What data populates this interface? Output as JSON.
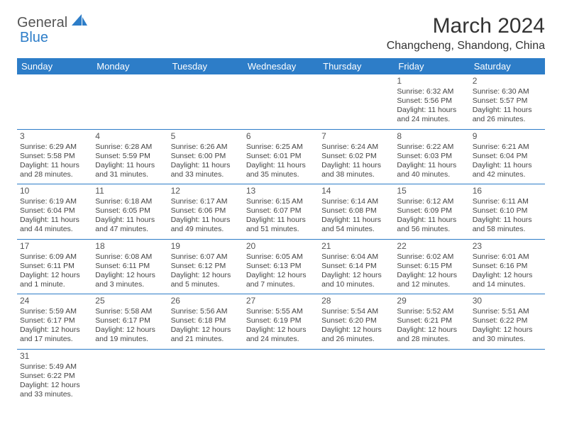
{
  "brand": {
    "part1": "General",
    "part2": "Blue"
  },
  "title": "March 2024",
  "location": "Changcheng, Shandong, China",
  "colors": {
    "accent": "#2d7dc8",
    "text": "#333333",
    "cell_text": "#444444",
    "bg": "#ffffff"
  },
  "day_headers": [
    "Sunday",
    "Monday",
    "Tuesday",
    "Wednesday",
    "Thursday",
    "Friday",
    "Saturday"
  ],
  "weeks": [
    [
      null,
      null,
      null,
      null,
      null,
      {
        "n": "1",
        "sr": "Sunrise: 6:32 AM",
        "ss": "Sunset: 5:56 PM",
        "d1": "Daylight: 11 hours",
        "d2": "and 24 minutes."
      },
      {
        "n": "2",
        "sr": "Sunrise: 6:30 AM",
        "ss": "Sunset: 5:57 PM",
        "d1": "Daylight: 11 hours",
        "d2": "and 26 minutes."
      }
    ],
    [
      {
        "n": "3",
        "sr": "Sunrise: 6:29 AM",
        "ss": "Sunset: 5:58 PM",
        "d1": "Daylight: 11 hours",
        "d2": "and 28 minutes."
      },
      {
        "n": "4",
        "sr": "Sunrise: 6:28 AM",
        "ss": "Sunset: 5:59 PM",
        "d1": "Daylight: 11 hours",
        "d2": "and 31 minutes."
      },
      {
        "n": "5",
        "sr": "Sunrise: 6:26 AM",
        "ss": "Sunset: 6:00 PM",
        "d1": "Daylight: 11 hours",
        "d2": "and 33 minutes."
      },
      {
        "n": "6",
        "sr": "Sunrise: 6:25 AM",
        "ss": "Sunset: 6:01 PM",
        "d1": "Daylight: 11 hours",
        "d2": "and 35 minutes."
      },
      {
        "n": "7",
        "sr": "Sunrise: 6:24 AM",
        "ss": "Sunset: 6:02 PM",
        "d1": "Daylight: 11 hours",
        "d2": "and 38 minutes."
      },
      {
        "n": "8",
        "sr": "Sunrise: 6:22 AM",
        "ss": "Sunset: 6:03 PM",
        "d1": "Daylight: 11 hours",
        "d2": "and 40 minutes."
      },
      {
        "n": "9",
        "sr": "Sunrise: 6:21 AM",
        "ss": "Sunset: 6:04 PM",
        "d1": "Daylight: 11 hours",
        "d2": "and 42 minutes."
      }
    ],
    [
      {
        "n": "10",
        "sr": "Sunrise: 6:19 AM",
        "ss": "Sunset: 6:04 PM",
        "d1": "Daylight: 11 hours",
        "d2": "and 44 minutes."
      },
      {
        "n": "11",
        "sr": "Sunrise: 6:18 AM",
        "ss": "Sunset: 6:05 PM",
        "d1": "Daylight: 11 hours",
        "d2": "and 47 minutes."
      },
      {
        "n": "12",
        "sr": "Sunrise: 6:17 AM",
        "ss": "Sunset: 6:06 PM",
        "d1": "Daylight: 11 hours",
        "d2": "and 49 minutes."
      },
      {
        "n": "13",
        "sr": "Sunrise: 6:15 AM",
        "ss": "Sunset: 6:07 PM",
        "d1": "Daylight: 11 hours",
        "d2": "and 51 minutes."
      },
      {
        "n": "14",
        "sr": "Sunrise: 6:14 AM",
        "ss": "Sunset: 6:08 PM",
        "d1": "Daylight: 11 hours",
        "d2": "and 54 minutes."
      },
      {
        "n": "15",
        "sr": "Sunrise: 6:12 AM",
        "ss": "Sunset: 6:09 PM",
        "d1": "Daylight: 11 hours",
        "d2": "and 56 minutes."
      },
      {
        "n": "16",
        "sr": "Sunrise: 6:11 AM",
        "ss": "Sunset: 6:10 PM",
        "d1": "Daylight: 11 hours",
        "d2": "and 58 minutes."
      }
    ],
    [
      {
        "n": "17",
        "sr": "Sunrise: 6:09 AM",
        "ss": "Sunset: 6:11 PM",
        "d1": "Daylight: 12 hours",
        "d2": "and 1 minute."
      },
      {
        "n": "18",
        "sr": "Sunrise: 6:08 AM",
        "ss": "Sunset: 6:11 PM",
        "d1": "Daylight: 12 hours",
        "d2": "and 3 minutes."
      },
      {
        "n": "19",
        "sr": "Sunrise: 6:07 AM",
        "ss": "Sunset: 6:12 PM",
        "d1": "Daylight: 12 hours",
        "d2": "and 5 minutes."
      },
      {
        "n": "20",
        "sr": "Sunrise: 6:05 AM",
        "ss": "Sunset: 6:13 PM",
        "d1": "Daylight: 12 hours",
        "d2": "and 7 minutes."
      },
      {
        "n": "21",
        "sr": "Sunrise: 6:04 AM",
        "ss": "Sunset: 6:14 PM",
        "d1": "Daylight: 12 hours",
        "d2": "and 10 minutes."
      },
      {
        "n": "22",
        "sr": "Sunrise: 6:02 AM",
        "ss": "Sunset: 6:15 PM",
        "d1": "Daylight: 12 hours",
        "d2": "and 12 minutes."
      },
      {
        "n": "23",
        "sr": "Sunrise: 6:01 AM",
        "ss": "Sunset: 6:16 PM",
        "d1": "Daylight: 12 hours",
        "d2": "and 14 minutes."
      }
    ],
    [
      {
        "n": "24",
        "sr": "Sunrise: 5:59 AM",
        "ss": "Sunset: 6:17 PM",
        "d1": "Daylight: 12 hours",
        "d2": "and 17 minutes."
      },
      {
        "n": "25",
        "sr": "Sunrise: 5:58 AM",
        "ss": "Sunset: 6:17 PM",
        "d1": "Daylight: 12 hours",
        "d2": "and 19 minutes."
      },
      {
        "n": "26",
        "sr": "Sunrise: 5:56 AM",
        "ss": "Sunset: 6:18 PM",
        "d1": "Daylight: 12 hours",
        "d2": "and 21 minutes."
      },
      {
        "n": "27",
        "sr": "Sunrise: 5:55 AM",
        "ss": "Sunset: 6:19 PM",
        "d1": "Daylight: 12 hours",
        "d2": "and 24 minutes."
      },
      {
        "n": "28",
        "sr": "Sunrise: 5:54 AM",
        "ss": "Sunset: 6:20 PM",
        "d1": "Daylight: 12 hours",
        "d2": "and 26 minutes."
      },
      {
        "n": "29",
        "sr": "Sunrise: 5:52 AM",
        "ss": "Sunset: 6:21 PM",
        "d1": "Daylight: 12 hours",
        "d2": "and 28 minutes."
      },
      {
        "n": "30",
        "sr": "Sunrise: 5:51 AM",
        "ss": "Sunset: 6:22 PM",
        "d1": "Daylight: 12 hours",
        "d2": "and 30 minutes."
      }
    ],
    [
      {
        "n": "31",
        "sr": "Sunrise: 5:49 AM",
        "ss": "Sunset: 6:22 PM",
        "d1": "Daylight: 12 hours",
        "d2": "and 33 minutes."
      },
      null,
      null,
      null,
      null,
      null,
      null
    ]
  ]
}
